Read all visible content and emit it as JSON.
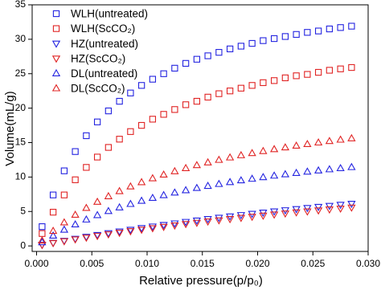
{
  "chart_data": {
    "type": "scatter",
    "x_label": "Relative pressure(p/p₀)",
    "y_label": "Volume(mL/g)",
    "x": [
      0.0005,
      0.0015,
      0.0025,
      0.0035,
      0.0045,
      0.0055,
      0.0065,
      0.0075,
      0.0085,
      0.0095,
      0.0105,
      0.0115,
      0.0125,
      0.0135,
      0.0145,
      0.0155,
      0.0165,
      0.0175,
      0.0185,
      0.0195,
      0.0205,
      0.0215,
      0.0225,
      0.0235,
      0.0245,
      0.0255,
      0.0265,
      0.0275,
      0.0285
    ],
    "series": [
      {
        "name": "WLH(untreated)",
        "color": "#2323e0",
        "marker": "square",
        "values": [
          2.8,
          7.4,
          10.9,
          13.7,
          16.0,
          18.0,
          19.6,
          21.0,
          22.2,
          23.3,
          24.2,
          25.0,
          25.8,
          26.5,
          27.1,
          27.6,
          28.1,
          28.6,
          29.0,
          29.4,
          29.8,
          30.1,
          30.4,
          30.7,
          31.0,
          31.2,
          31.5,
          31.7,
          31.9
        ]
      },
      {
        "name": "WLH(ScCO₂)",
        "color": "#e02323",
        "marker": "square",
        "values": [
          1.8,
          4.9,
          7.4,
          9.6,
          11.4,
          12.9,
          14.3,
          15.5,
          16.6,
          17.5,
          18.4,
          19.1,
          19.8,
          20.5,
          21.0,
          21.6,
          22.1,
          22.5,
          22.9,
          23.3,
          23.7,
          24.0,
          24.4,
          24.7,
          24.9,
          25.2,
          25.5,
          25.7,
          25.9
        ]
      },
      {
        "name": "HZ(untreated)",
        "color": "#2323e0",
        "marker": "triangle-down",
        "values": [
          0.16,
          0.46,
          0.76,
          1.05,
          1.33,
          1.6,
          1.86,
          2.11,
          2.36,
          2.6,
          2.83,
          3.06,
          3.28,
          3.5,
          3.7,
          3.91,
          4.1,
          4.3,
          4.49,
          4.67,
          4.85,
          5.02,
          5.19,
          5.36,
          5.52,
          5.68,
          5.83,
          5.98,
          6.13
        ]
      },
      {
        "name": "HZ(ScCO₂)",
        "color": "#e02323",
        "marker": "triangle-down",
        "values": [
          0.15,
          0.42,
          0.69,
          0.96,
          1.21,
          1.46,
          1.69,
          1.92,
          2.15,
          2.37,
          2.58,
          2.78,
          2.98,
          3.19,
          3.37,
          3.56,
          3.73,
          3.91,
          4.09,
          4.25,
          4.41,
          4.57,
          4.72,
          4.88,
          5.02,
          5.17,
          5.31,
          5.44,
          5.58
        ]
      },
      {
        "name": "DL(untreated)",
        "color": "#2323e0",
        "marker": "triangle-up",
        "values": [
          0.52,
          1.48,
          2.34,
          3.11,
          3.82,
          4.46,
          5.05,
          5.58,
          6.08,
          6.54,
          6.96,
          7.36,
          7.73,
          8.07,
          8.4,
          8.7,
          8.98,
          9.25,
          9.51,
          9.74,
          9.97,
          10.19,
          10.39,
          10.58,
          10.77,
          10.94,
          11.11,
          11.27,
          11.43
        ]
      },
      {
        "name": "DL(ScCO₂)",
        "color": "#e02323",
        "marker": "triangle-up",
        "values": [
          0.77,
          2.17,
          3.4,
          4.51,
          5.5,
          6.39,
          7.2,
          7.94,
          8.62,
          9.24,
          9.81,
          10.34,
          10.83,
          11.28,
          11.71,
          12.11,
          12.48,
          12.83,
          13.15,
          13.46,
          13.76,
          14.03,
          14.29,
          14.54,
          14.77,
          15.0,
          15.21,
          15.41,
          15.61
        ]
      }
    ],
    "xlim": [
      -0.0004,
      0.03
    ],
    "ylim": [
      -0.8,
      35
    ],
    "xticks": [
      {
        "value": 0,
        "label": "0.000"
      },
      {
        "value": 0.005,
        "label": "0.005"
      },
      {
        "value": 0.01,
        "label": "0.010"
      },
      {
        "value": 0.015,
        "label": "0.015"
      },
      {
        "value": 0.02,
        "label": "0.020"
      },
      {
        "value": 0.025,
        "label": "0.025"
      },
      {
        "value": 0.03,
        "label": "0.030"
      }
    ],
    "yticks": [
      0,
      5,
      10,
      15,
      20,
      25,
      30,
      35
    ],
    "grid": false,
    "legend": "upper-left"
  }
}
